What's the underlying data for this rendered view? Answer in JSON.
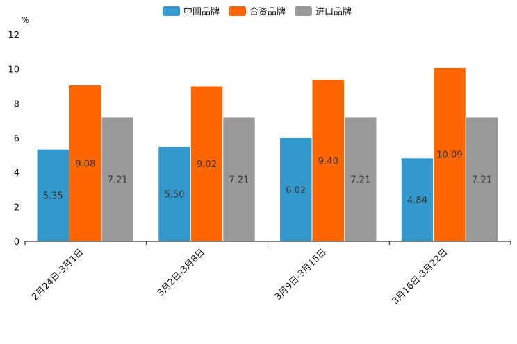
{
  "chart_data": {
    "type": "bar",
    "unit": "%",
    "categories": [
      "2月24日-3月1日",
      "3月2日-3月8日",
      "3月9日-3月15日",
      "3月16日-3月22日"
    ],
    "series": [
      {
        "name": "中国品牌",
        "color": "#3399cc",
        "values": [
          5.35,
          5.5,
          6.02,
          4.84
        ],
        "labels": [
          "5.35",
          "5.50",
          "6.02",
          "4.84"
        ]
      },
      {
        "name": "合资品牌",
        "color": "#ff6600",
        "values": [
          9.08,
          9.02,
          9.4,
          10.09
        ],
        "labels": [
          "9.08",
          "9.02",
          "9.40",
          "10.09"
        ]
      },
      {
        "name": "进口品牌",
        "color": "#999999",
        "values": [
          7.21,
          7.21,
          7.21,
          7.21
        ],
        "labels": [
          "7.21",
          "7.21",
          "7.21",
          "7.21"
        ]
      }
    ],
    "ylim": [
      0,
      12
    ],
    "yticks": [
      "0",
      "2",
      "4",
      "6",
      "8",
      "10",
      "12"
    ],
    "legend_position": "top-center",
    "grid": false
  }
}
